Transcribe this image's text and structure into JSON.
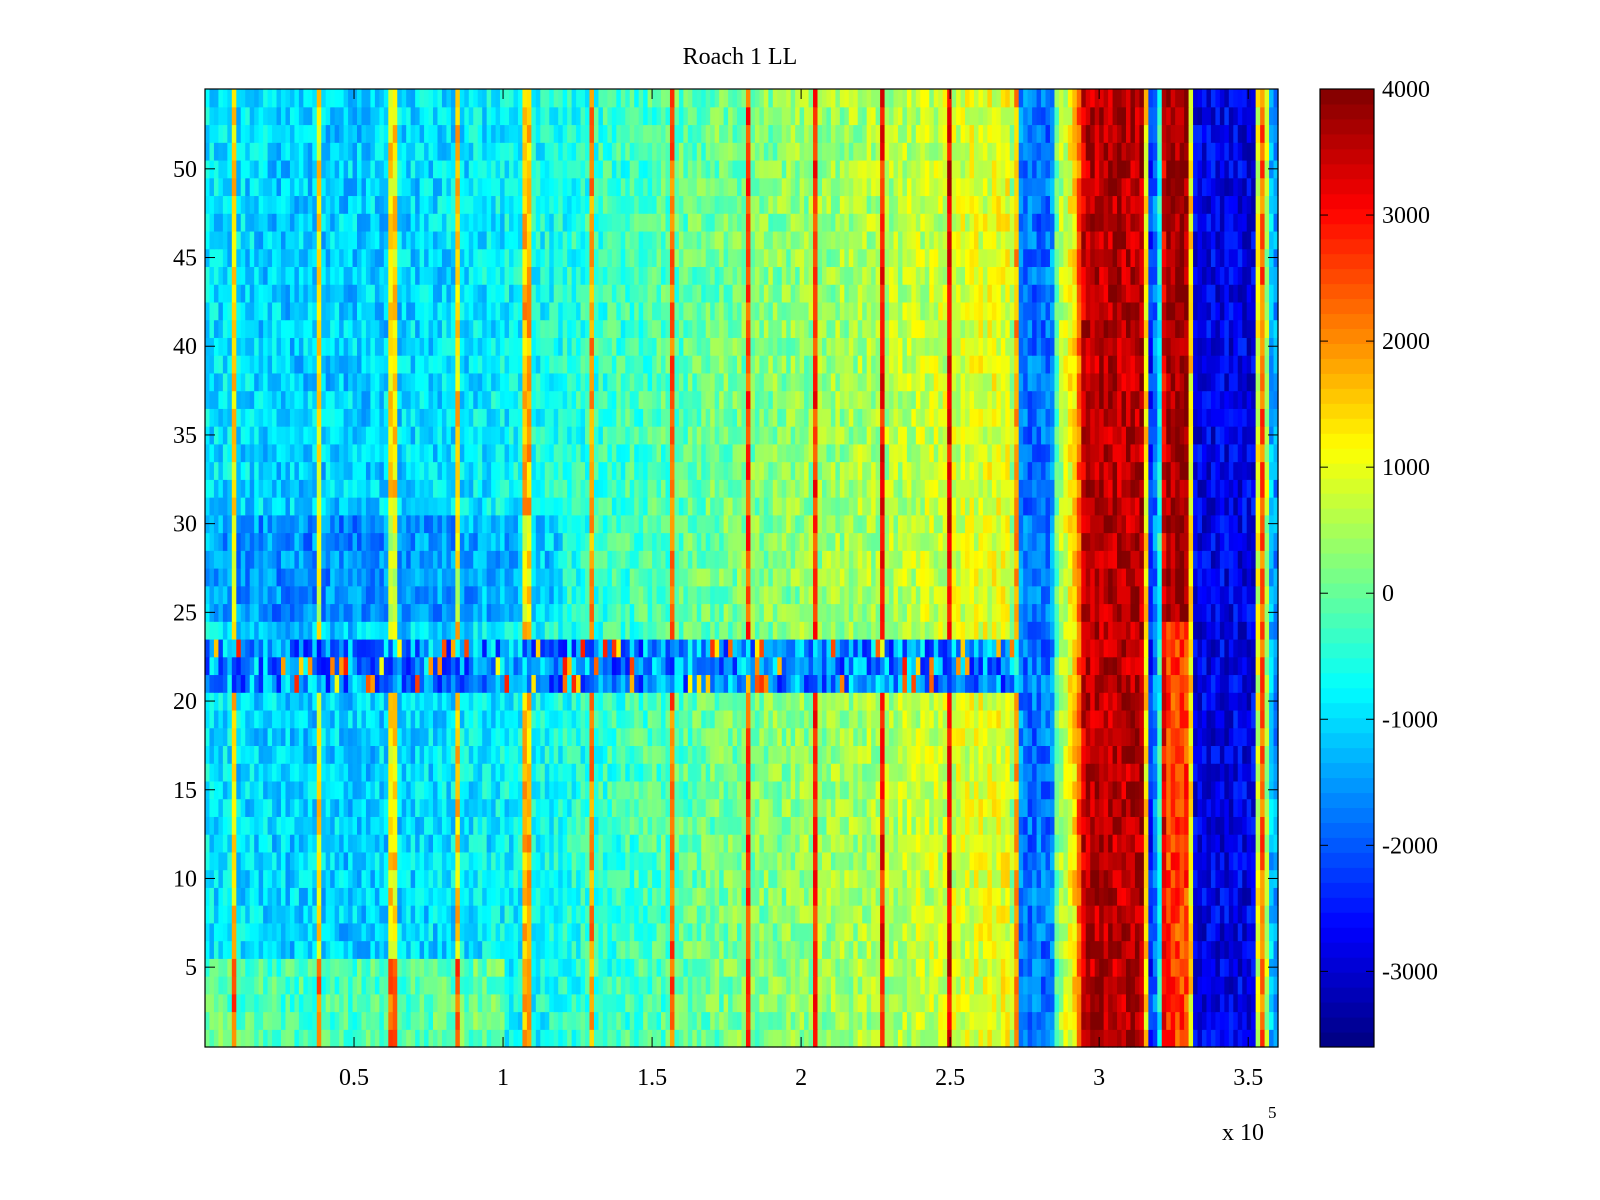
{
  "chart_data": {
    "type": "heatmap",
    "title": "Roach 1 LL",
    "xlabel": "",
    "ylabel": "",
    "x_multiplier_label": "x 10",
    "x_multiplier_exponent": "5",
    "xlim": [
      0,
      3.6
    ],
    "ylim": [
      0.5,
      54.5
    ],
    "x_ticks": [
      {
        "value": 0.5,
        "label": "0.5"
      },
      {
        "value": 1,
        "label": "1"
      },
      {
        "value": 1.5,
        "label": "1.5"
      },
      {
        "value": 2,
        "label": "2"
      },
      {
        "value": 2.5,
        "label": "2.5"
      },
      {
        "value": 3,
        "label": "3"
      },
      {
        "value": 3.5,
        "label": "3.5"
      }
    ],
    "y_ticks": [
      {
        "value": 5,
        "label": "5"
      },
      {
        "value": 10,
        "label": "10"
      },
      {
        "value": 15,
        "label": "15"
      },
      {
        "value": 20,
        "label": "20"
      },
      {
        "value": 25,
        "label": "25"
      },
      {
        "value": 30,
        "label": "30"
      },
      {
        "value": 35,
        "label": "35"
      },
      {
        "value": 40,
        "label": "40"
      },
      {
        "value": 45,
        "label": "45"
      },
      {
        "value": 50,
        "label": "50"
      }
    ],
    "colorbar": {
      "colormap": "jet",
      "range": [
        -3600,
        4000
      ],
      "ticks": [
        {
          "value": 4000,
          "label": "4000"
        },
        {
          "value": 3000,
          "label": "3000"
        },
        {
          "value": 2000,
          "label": "2000"
        },
        {
          "value": 1000,
          "label": "1000"
        },
        {
          "value": 0,
          "label": "0"
        },
        {
          "value": -1000,
          "label": "-1000"
        },
        {
          "value": -2000,
          "label": "-2000"
        },
        {
          "value": -3000,
          "label": "-3000"
        }
      ]
    },
    "grid": false,
    "rows": 54,
    "x_profile": [
      {
        "x": 0.0,
        "value": -900
      },
      {
        "x": 0.25,
        "value": -1100
      },
      {
        "x": 0.5,
        "value": -1100
      },
      {
        "x": 0.75,
        "value": -1000
      },
      {
        "x": 1.0,
        "value": -800
      },
      {
        "x": 1.25,
        "value": -500
      },
      {
        "x": 1.5,
        "value": -200
      },
      {
        "x": 1.75,
        "value": 100
      },
      {
        "x": 2.0,
        "value": 300
      },
      {
        "x": 2.25,
        "value": 500
      },
      {
        "x": 2.5,
        "value": 800
      },
      {
        "x": 2.7,
        "value": 1000
      },
      {
        "x": 2.74,
        "value": -1800
      },
      {
        "x": 2.84,
        "value": -1800
      },
      {
        "x": 2.86,
        "value": 300
      },
      {
        "x": 2.92,
        "value": 1400
      },
      {
        "x": 2.95,
        "value": 3600
      },
      {
        "x": 3.15,
        "value": 3600
      },
      {
        "x": 3.17,
        "value": -2500
      },
      {
        "x": 3.2,
        "value": -1200
      },
      {
        "x": 3.22,
        "value": 3800
      },
      {
        "x": 3.3,
        "value": 3800
      },
      {
        "x": 3.32,
        "value": -2800
      },
      {
        "x": 3.52,
        "value": -2800
      },
      {
        "x": 3.54,
        "value": 3200
      },
      {
        "x": 3.58,
        "value": -1500
      },
      {
        "x": 3.6,
        "value": -1500
      }
    ],
    "anomaly_band": {
      "row_from": 21,
      "row_to": 23,
      "value": -2600
    },
    "red_streaks_x": [
      0.1,
      0.38,
      0.63,
      0.85,
      1.08,
      1.3,
      1.57,
      1.82,
      2.05,
      2.27,
      2.5,
      2.72
    ]
  }
}
